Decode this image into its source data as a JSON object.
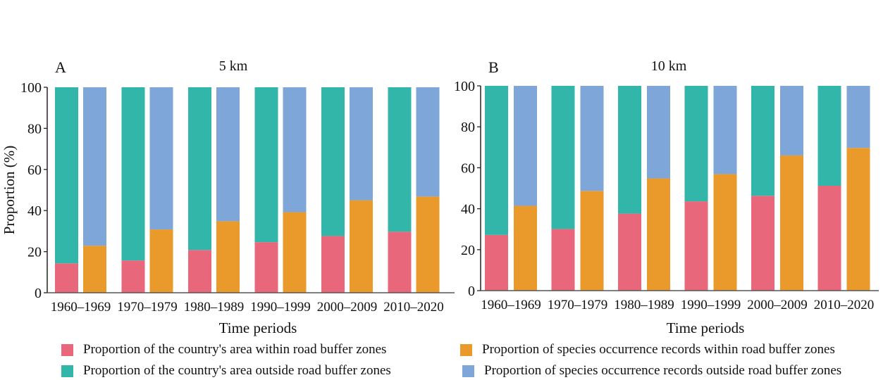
{
  "chart_data": [
    {
      "type": "bar",
      "panel_letter": "A",
      "title": "5 km",
      "xlabel": "Time periods",
      "ylabel": "Proportion (%)",
      "ylim": [
        0,
        100
      ],
      "yticks": [
        0,
        20,
        40,
        60,
        80,
        100
      ],
      "stacked": true,
      "categories": [
        "1960–1969",
        "1970–1979",
        "1980–1989",
        "1990–1999",
        "2000–2009",
        "2010–2020"
      ],
      "groups": [
        {
          "name": "country_area",
          "series": [
            {
              "name": "Proportion of the country's area within road buffer zones",
              "values": [
                14.3,
                15.7,
                20.8,
                24.6,
                27.6,
                29.7
              ]
            },
            {
              "name": "Proportion of the country's area outside road buffer zones",
              "values": [
                85.7,
                84.3,
                79.2,
                75.4,
                72.4,
                70.3
              ]
            }
          ]
        },
        {
          "name": "species_records",
          "series": [
            {
              "name": "Proportion of species occurrence records within road buffer zones",
              "values": [
                22.9,
                30.8,
                34.8,
                39.2,
                45.0,
                46.8
              ]
            },
            {
              "name": "Proportion of species occurrence records outside road buffer zones",
              "values": [
                77.1,
                69.2,
                65.2,
                60.8,
                55.0,
                53.2
              ]
            }
          ]
        }
      ]
    },
    {
      "type": "bar",
      "panel_letter": "B",
      "title": "10 km",
      "xlabel": "Time periods",
      "ylabel": "",
      "ylim": [
        0,
        100
      ],
      "yticks": [
        0,
        20,
        40,
        60,
        80,
        100
      ],
      "stacked": true,
      "categories": [
        "1960–1969",
        "1970–1979",
        "1980–1989",
        "1990–1999",
        "2000–2009",
        "2010–2020"
      ],
      "groups": [
        {
          "name": "country_area",
          "series": [
            {
              "name": "Proportion of the country's area within road buffer zones",
              "values": [
                27.2,
                30.1,
                37.6,
                43.6,
                46.3,
                51.2
              ]
            },
            {
              "name": "Proportion of the country's area outside road buffer zones",
              "values": [
                72.8,
                69.9,
                62.4,
                56.4,
                53.7,
                48.8
              ]
            }
          ]
        },
        {
          "name": "species_records",
          "series": [
            {
              "name": "Proportion of species occurrence records within road buffer zones",
              "values": [
                41.4,
                48.7,
                54.8,
                56.9,
                66.0,
                69.7
              ]
            },
            {
              "name": "Proportion of species occurrence records outside road buffer zones",
              "values": [
                58.6,
                51.3,
                45.2,
                43.1,
                34.0,
                30.3
              ]
            }
          ]
        }
      ]
    }
  ],
  "colors": {
    "area_within": "#e8677a",
    "area_outside": "#31b6a9",
    "records_within": "#ea9a2a",
    "records_outside": "#7fa6d8"
  },
  "legend": [
    {
      "label": "Proportion of the country's area within road buffer zones",
      "color": "#e8677a"
    },
    {
      "label": "Proportion of species occurrence records within road buffer zones",
      "color": "#ea9a2a"
    },
    {
      "label": "Proportion of the country's area outside road buffer zones",
      "color": "#31b6a9"
    },
    {
      "label": "Proportion of species occurrence records outside road buffer zones",
      "color": "#7fa6d8"
    }
  ]
}
